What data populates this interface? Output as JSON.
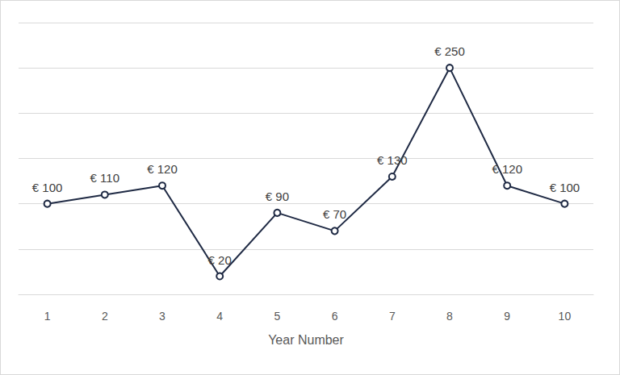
{
  "chart_data": {
    "type": "line",
    "x_label": "Year Number",
    "categories": [
      "1",
      "2",
      "3",
      "4",
      "5",
      "6",
      "7",
      "8",
      "9",
      "10"
    ],
    "values": [
      100,
      110,
      120,
      20,
      90,
      70,
      130,
      250,
      120,
      100
    ],
    "value_labels": [
      "€ 100",
      "€ 110",
      "€ 120",
      "€ 20",
      "€ 90",
      "€ 70",
      "€ 130",
      "€ 250",
      "€ 120",
      "€ 100"
    ],
    "color": "#1f2a44",
    "marker": "circle",
    "line_style": "solid",
    "ylim": [
      0,
      300
    ],
    "yticks": [
      0,
      50,
      100,
      150,
      200,
      250,
      300
    ],
    "grid": true,
    "data_labels": true,
    "tick_labels": "x"
  }
}
